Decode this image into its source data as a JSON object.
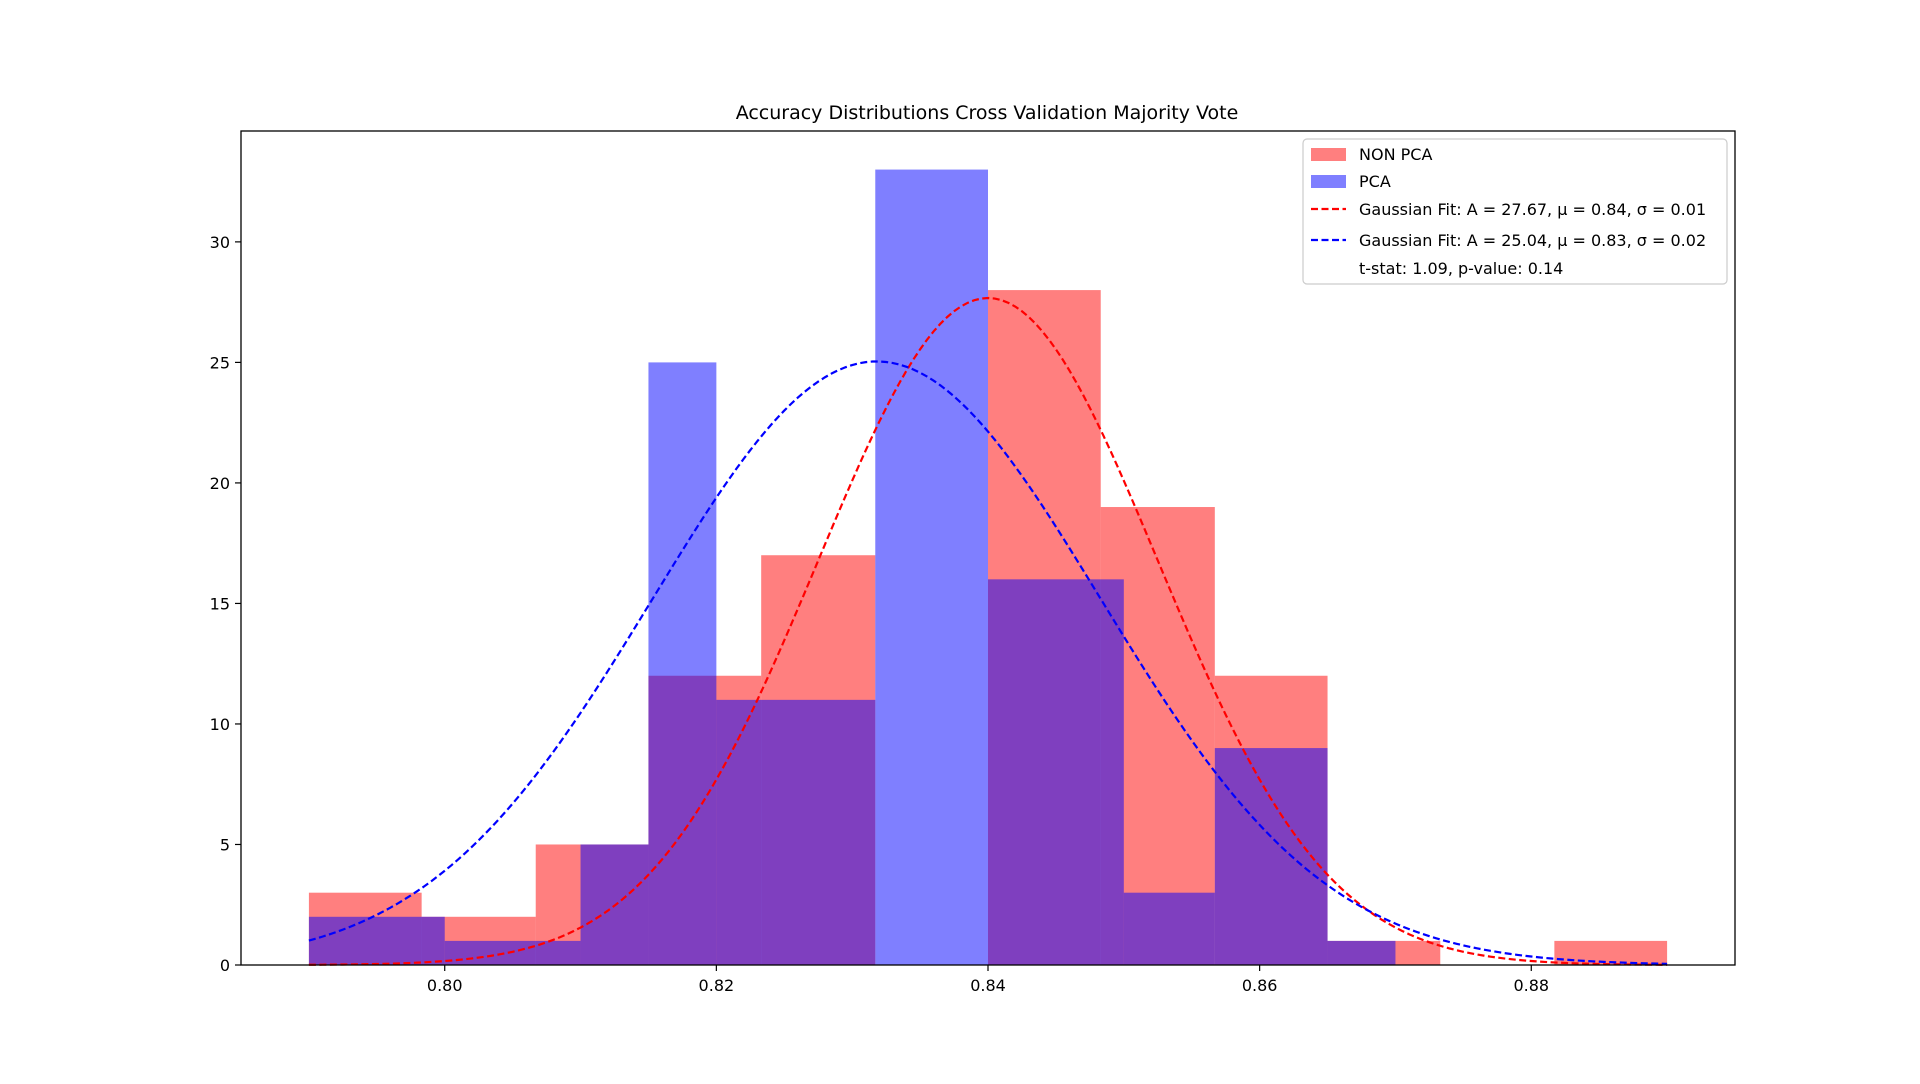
{
  "chart_data": {
    "type": "bar",
    "title": "Accuracy Distributions Cross Validation Majority Vote",
    "xlabel": "",
    "ylabel": "",
    "xlim": [
      0.785,
      0.895
    ],
    "ylim": [
      0,
      34.6
    ],
    "x_ticks": [
      0.8,
      0.82,
      0.84,
      0.86,
      0.88
    ],
    "x_tick_labels": [
      "0.80",
      "0.82",
      "0.84",
      "0.86",
      "0.88"
    ],
    "y_ticks": [
      0,
      5,
      10,
      15,
      20,
      25,
      30
    ],
    "y_tick_labels": [
      "0",
      "5",
      "10",
      "15",
      "20",
      "25",
      "30"
    ],
    "grid": false,
    "legend_placement": "top-right",
    "series": [
      {
        "name": "NON PCA",
        "kind": "histogram",
        "color": "#ff0000",
        "alpha": 0.5,
        "bin_edges": [
          0.79,
          0.7983,
          0.8067,
          0.815,
          0.8233,
          0.8317,
          0.84,
          0.8483,
          0.8567,
          0.865,
          0.8733,
          0.8817,
          0.89
        ],
        "counts": [
          3,
          2,
          5,
          12,
          17,
          0,
          28,
          19,
          12,
          1,
          0,
          1
        ]
      },
      {
        "name": "PCA",
        "kind": "histogram",
        "color": "#0000ff",
        "alpha": 0.5,
        "bin_edges": [
          0.79,
          0.8,
          0.81,
          0.815,
          0.82,
          0.8317,
          0.84,
          0.85,
          0.8567,
          0.865,
          0.87
        ],
        "counts": [
          2,
          1,
          5,
          25,
          11,
          33,
          16,
          3,
          9,
          1
        ]
      },
      {
        "name": "Gaussian Fit: A = 27.67, μ = 0.84, σ = 0.01",
        "kind": "gaussian_fit",
        "color": "#ff0000",
        "style": "dashed",
        "A": 27.67,
        "mu": 0.84,
        "sigma": 0.0125,
        "x_range": [
          0.79,
          0.89
        ]
      },
      {
        "name": "Gaussian Fit: A = 25.04, μ = 0.83, σ = 0.02",
        "kind": "gaussian_fit",
        "color": "#0000ff",
        "style": "dashed",
        "A": 25.04,
        "mu": 0.8318,
        "sigma": 0.0165,
        "x_range": [
          0.79,
          0.89
        ]
      }
    ],
    "legend": [
      {
        "label": "NON PCA",
        "marker": "patch",
        "color": "#ff0000"
      },
      {
        "label": "PCA",
        "marker": "patch",
        "color": "#0000ff"
      },
      {
        "label": "Gaussian Fit: A = 27.67, μ = 0.84, σ = 0.01",
        "marker": "dashed",
        "color": "#ff0000"
      },
      {
        "label": "Gaussian Fit: A = 25.04, μ = 0.83, σ = 0.02",
        "marker": "dashed",
        "color": "#0000ff"
      },
      {
        "label": "t-stat: 1.09, p-value: 0.14",
        "marker": "none",
        "color": ""
      }
    ]
  }
}
